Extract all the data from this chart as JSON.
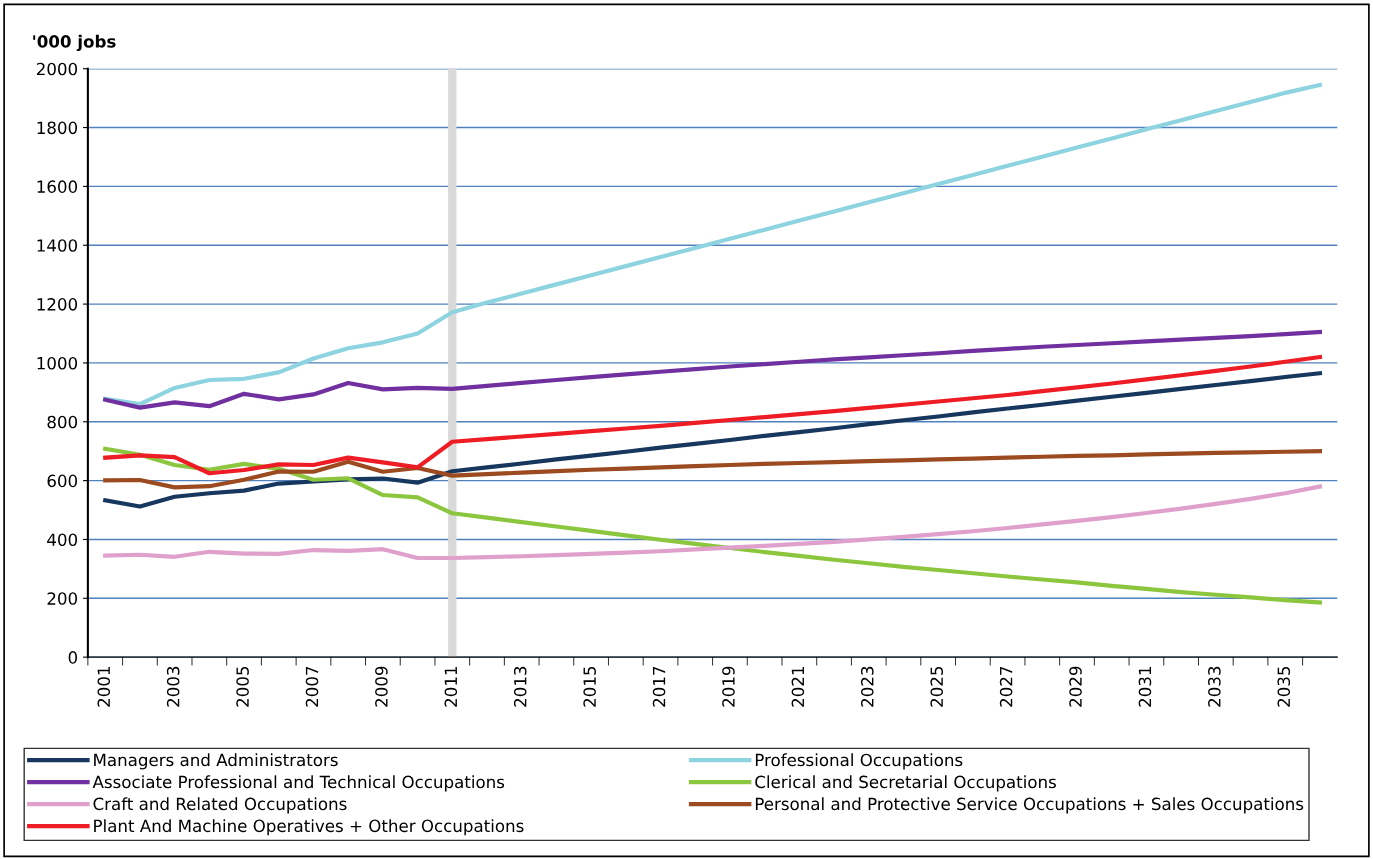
{
  "chart_data": {
    "type": "line",
    "ylabel": "'000 jobs",
    "categories": [
      "2001",
      null,
      "2003",
      null,
      "2005",
      null,
      "2007",
      null,
      "2009",
      null,
      "2011",
      null,
      "2013",
      null,
      "2015",
      null,
      "2017",
      null,
      "2019",
      null,
      "2021",
      null,
      "2023",
      null,
      "2025",
      null,
      "2027",
      null,
      "2029",
      null,
      "2031",
      null,
      "2033",
      null,
      "2035",
      null
    ],
    "ylim": [
      0,
      2000
    ],
    "yticks": [
      0,
      200,
      400,
      600,
      800,
      1000,
      1200,
      1400,
      1600,
      1800,
      2000
    ],
    "grid": "y",
    "legend": "bottom",
    "marker": "none",
    "line_style": "solid",
    "ref_lines": [
      {
        "axis": "x",
        "value": "2011",
        "color": "#d9d9d9"
      }
    ],
    "series": [
      {
        "name": "Managers and Administrators",
        "color": "#17375e",
        "values": [
          533,
          512,
          545,
          557,
          566,
          590,
          597,
          604,
          607,
          593,
          632,
          645,
          658,
          672,
          685,
          698,
          712,
          725,
          738,
          752,
          765,
          778,
          792,
          805,
          818,
          832,
          845,
          858,
          872,
          885,
          898,
          912,
          925,
          938,
          952,
          965
        ]
      },
      {
        "name": "Professional Occupations",
        "color": "#8dd3e0",
        "values": [
          878,
          860,
          915,
          942,
          946,
          968,
          1015,
          1050,
          1070,
          1100,
          1172,
          1205,
          1236,
          1267,
          1298,
          1329,
          1360,
          1391,
          1422,
          1453,
          1484,
          1515,
          1546,
          1577,
          1608,
          1639,
          1670,
          1701,
          1732,
          1763,
          1794,
          1825,
          1856,
          1887,
          1918,
          1945
        ]
      },
      {
        "name": "Associate Professional and Technical Occupations",
        "color": "#7030a0",
        "values": [
          875,
          848,
          866,
          853,
          895,
          876,
          893,
          932,
          910,
          915,
          912,
          922,
          932,
          942,
          952,
          961,
          970,
          979,
          988,
          996,
          1004,
          1012,
          1019,
          1026,
          1033,
          1041,
          1048,
          1055,
          1061,
          1067,
          1073,
          1079,
          1085,
          1091,
          1098,
          1105
        ]
      },
      {
        "name": "Clerical and Secretarial Occupations",
        "color": "#8cc63e",
        "values": [
          708,
          688,
          653,
          637,
          657,
          640,
          603,
          608,
          551,
          543,
          489,
          474,
          459,
          444,
          429,
          414,
          399,
          385,
          371,
          357,
          344,
          331,
          319,
          307,
          296,
          285,
          274,
          264,
          254,
          242,
          232,
          221,
          212,
          203,
          194,
          186
        ]
      },
      {
        "name": "Craft and Related Occupations",
        "color": "#e0a0cc",
        "values": [
          345,
          348,
          341,
          358,
          352,
          351,
          364,
          361,
          367,
          337,
          337,
          340,
          343,
          347,
          351,
          355,
          360,
          366,
          372,
          378,
          385,
          392,
          400,
          409,
          418,
          428,
          439,
          451,
          463,
          476,
          490,
          505,
          521,
          538,
          557,
          580
        ]
      },
      {
        "name": "Personal and Protective Service Occupations + Sales Occupations",
        "color": "#9c4a1f",
        "values": [
          601,
          602,
          577,
          581,
          603,
          631,
          630,
          664,
          630,
          643,
          617,
          622,
          627,
          632,
          637,
          641,
          645,
          649,
          653,
          657,
          660,
          663,
          666,
          669,
          672,
          675,
          678,
          681,
          684,
          686,
          689,
          692,
          694,
          696,
          698,
          700
        ]
      },
      {
        "name": "Plant And Machine Operatives + Other Occupations",
        "color": "#ee1c25",
        "values": [
          678,
          686,
          680,
          625,
          636,
          655,
          653,
          678,
          662,
          645,
          732,
          741,
          750,
          759,
          768,
          777,
          786,
          796,
          806,
          816,
          826,
          836,
          847,
          858,
          869,
          880,
          891,
          904,
          917,
          930,
          944,
          958,
          973,
          988,
          1004,
          1020
        ]
      }
    ]
  }
}
